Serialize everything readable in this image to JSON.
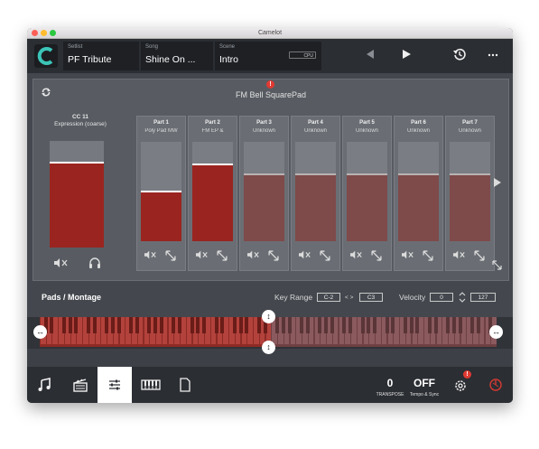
{
  "window": {
    "title": "Camelot"
  },
  "topbar": {
    "setlist": {
      "label": "Setlist",
      "value": "PF  Tribute"
    },
    "song": {
      "label": "Song",
      "value": "Shine On ..."
    },
    "scene": {
      "label": "Scene",
      "value": "Intro"
    },
    "cpu_label": "CPU",
    "icons": [
      "camelot-logo-icon",
      "previous-icon",
      "play-icon",
      "history-icon",
      "more-icon"
    ]
  },
  "instrument": {
    "title": "FM Bell SquarePad",
    "alert": "!"
  },
  "cc": {
    "title": "CC 11",
    "subtitle": "Expression (coarse)",
    "level": 0.8
  },
  "parts": [
    {
      "name": "Part 1",
      "sub": "Poly Pad MW",
      "level": 0.5,
      "color": "#9a2520"
    },
    {
      "name": "Part 2",
      "sub": "FM EP &",
      "level": 0.78,
      "color": "#9a2520"
    },
    {
      "name": "Part 3",
      "sub": "Unknown",
      "level": 0.68,
      "color": "#7f4a4a"
    },
    {
      "name": "Part 4",
      "sub": "Unknown",
      "level": 0.68,
      "color": "#7f4a4a"
    },
    {
      "name": "Part 5",
      "sub": "Unknown",
      "level": 0.68,
      "color": "#7f4a4a"
    },
    {
      "name": "Part 6",
      "sub": "Unknown",
      "level": 0.68,
      "color": "#7f4a4a"
    },
    {
      "name": "Part 7",
      "sub": "Unknown",
      "level": 0.68,
      "color": "#7f4a4a"
    }
  ],
  "pads": {
    "title": "Pads  / Montage",
    "key_range_label": "Key Range",
    "key_low": "C-2",
    "key_sep": "< >",
    "key_high": "C3",
    "velocity_label": "Velocity",
    "vel_low": "0",
    "vel_sep": "< >",
    "vel_high": "127"
  },
  "keyboard": {
    "octave_labels": [
      "C-2",
      "C-1",
      "C0",
      "C1",
      "C2",
      "C3",
      "C4",
      "C5",
      "C6",
      "C7",
      "C8"
    ]
  },
  "bottombar": {
    "transpose_value": "0",
    "transpose_label": "TRANSPOSE",
    "sync_value": "OFF",
    "sync_label": "Tempo & Sync",
    "settings_alert": "!",
    "icons": [
      "music-note-icon",
      "clapperboard-icon",
      "sliders-icon",
      "piano-icon",
      "document-icon",
      "gear-icon",
      "power-icon"
    ]
  }
}
